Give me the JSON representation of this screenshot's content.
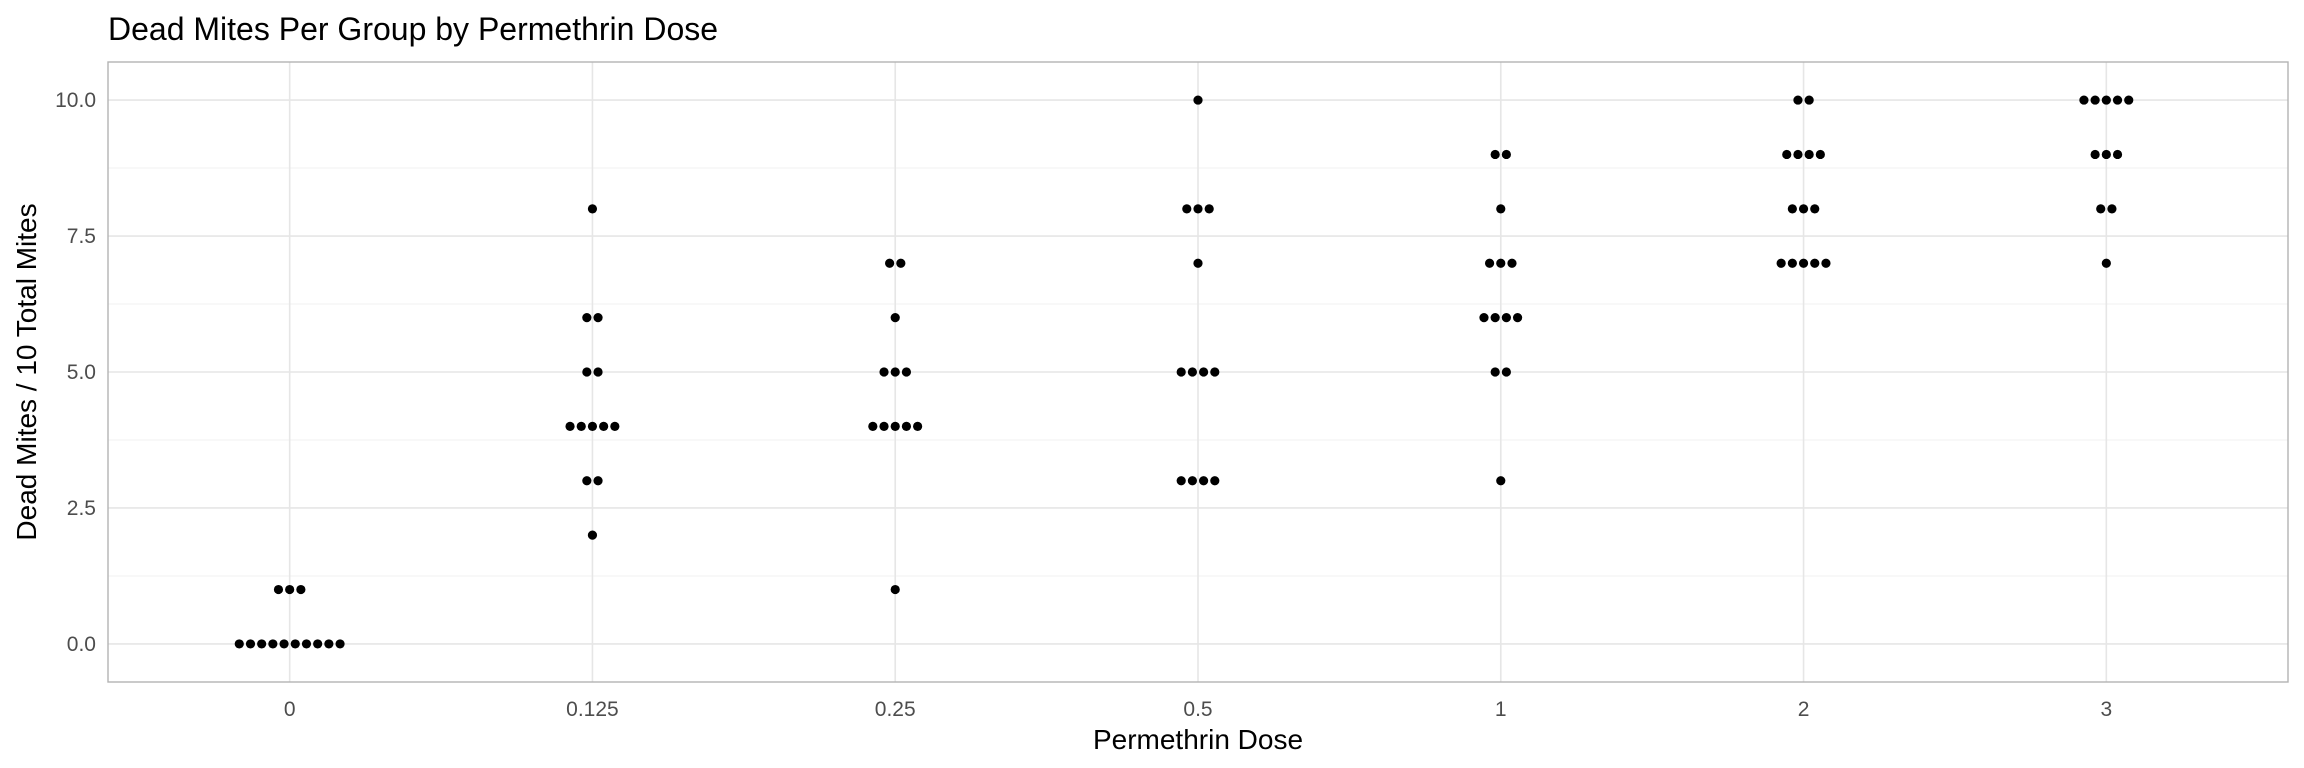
{
  "chart_data": {
    "type": "scatter",
    "subtype": "dotplot",
    "title": "Dead Mites Per Group by Permethrin Dose",
    "xlabel": "Permethrin Dose",
    "ylabel": "Dead Mites / 10 Total Mites",
    "categories": [
      "0",
      "0.125",
      "0.25",
      "0.5",
      "1",
      "2",
      "3"
    ],
    "y_ticks": [
      "0.0",
      "2.5",
      "5.0",
      "7.5",
      "10.0"
    ],
    "ylim": [
      -0.7,
      10.7
    ],
    "grid": true,
    "point_color": "#000000",
    "groups": [
      {
        "dose": "0",
        "counts": [
          {
            "y": 0,
            "n": 10
          },
          {
            "y": 1,
            "n": 3
          }
        ]
      },
      {
        "dose": "0.125",
        "counts": [
          {
            "y": 2,
            "n": 1
          },
          {
            "y": 3,
            "n": 2
          },
          {
            "y": 4,
            "n": 5
          },
          {
            "y": 5,
            "n": 2
          },
          {
            "y": 6,
            "n": 2
          },
          {
            "y": 8,
            "n": 1
          }
        ]
      },
      {
        "dose": "0.25",
        "counts": [
          {
            "y": 1,
            "n": 1
          },
          {
            "y": 4,
            "n": 5
          },
          {
            "y": 5,
            "n": 3
          },
          {
            "y": 6,
            "n": 1
          },
          {
            "y": 7,
            "n": 2
          }
        ]
      },
      {
        "dose": "0.5",
        "counts": [
          {
            "y": 3,
            "n": 4
          },
          {
            "y": 5,
            "n": 4
          },
          {
            "y": 7,
            "n": 1
          },
          {
            "y": 8,
            "n": 3
          },
          {
            "y": 10,
            "n": 1
          }
        ]
      },
      {
        "dose": "1",
        "counts": [
          {
            "y": 3,
            "n": 1
          },
          {
            "y": 5,
            "n": 2
          },
          {
            "y": 6,
            "n": 4
          },
          {
            "y": 7,
            "n": 3
          },
          {
            "y": 8,
            "n": 1
          },
          {
            "y": 9,
            "n": 2
          }
        ]
      },
      {
        "dose": "2",
        "counts": [
          {
            "y": 7,
            "n": 5
          },
          {
            "y": 8,
            "n": 3
          },
          {
            "y": 9,
            "n": 4
          },
          {
            "y": 10,
            "n": 2
          }
        ]
      },
      {
        "dose": "3",
        "counts": [
          {
            "y": 7,
            "n": 1
          },
          {
            "y": 8,
            "n": 2
          },
          {
            "y": 9,
            "n": 3
          },
          {
            "y": 10,
            "n": 5
          }
        ]
      }
    ]
  }
}
